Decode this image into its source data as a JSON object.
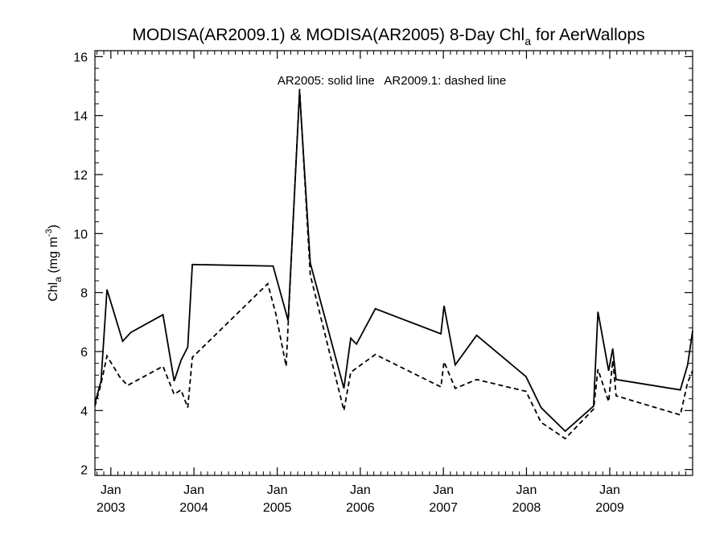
{
  "chart_data": {
    "type": "line",
    "title": "MODISA(AR2009.1) & MODISA(AR2005) 8-Day Chl",
    "title_subscript": "a",
    "title_suffix": " for AerWallops",
    "ylabel": "Chl",
    "ylabel_subscript": "a",
    "ylabel_unit": " (mg m",
    "ylabel_unit_exp": "-3",
    "ylabel_close": ")",
    "annotation": "AR2005: solid line   AR2009.1: dashed line",
    "xlim": [
      "2002-10-23",
      "2009-12-31"
    ],
    "ylim": [
      1.8,
      16.2
    ],
    "y_ticks": [
      2,
      4,
      6,
      8,
      10,
      12,
      14,
      16
    ],
    "y_tick_labels": [
      "2",
      "4",
      "6",
      "8",
      "10",
      "12",
      "14",
      "16"
    ],
    "x_ticks": [
      {
        "date": "2003-01-01",
        "month": "Jan",
        "year": "2003"
      },
      {
        "date": "2004-01-01",
        "month": "Jan",
        "year": "2004"
      },
      {
        "date": "2005-01-01",
        "month": "Jan",
        "year": "2005"
      },
      {
        "date": "2006-01-01",
        "month": "Jan",
        "year": "2006"
      },
      {
        "date": "2007-01-01",
        "month": "Jan",
        "year": "2007"
      },
      {
        "date": "2008-01-01",
        "month": "Jan",
        "year": "2008"
      },
      {
        "date": "2009-01-01",
        "month": "Jan",
        "year": "2009"
      }
    ],
    "grid": false,
    "series": [
      {
        "name": "AR2005",
        "line_style": "solid",
        "x": [
          "2002-10-23",
          "2002-11-19",
          "2002-12-15",
          "2003-02-22",
          "2003-03-30",
          "2003-08-18",
          "2003-10-06",
          "2003-11-05",
          "2003-12-05",
          "2003-12-25",
          "2004-12-14",
          "2005-02-18",
          "2005-04-09",
          "2005-05-26",
          "2005-10-21",
          "2005-11-20",
          "2005-12-15",
          "2006-03-08",
          "2006-12-21",
          "2007-01-04",
          "2007-02-22",
          "2007-05-27",
          "2007-12-30",
          "2008-03-05",
          "2008-06-19",
          "2008-10-22",
          "2008-11-10",
          "2008-12-27",
          "2009-01-14",
          "2009-01-29",
          "2009-11-07",
          "2009-12-09",
          "2009-12-31"
        ],
        "values": [
          4.25,
          5.0,
          8.1,
          6.35,
          6.65,
          7.25,
          5.0,
          5.7,
          6.15,
          8.95,
          8.9,
          7.05,
          14.8,
          9.0,
          4.75,
          6.45,
          6.25,
          7.45,
          6.6,
          7.55,
          5.55,
          6.55,
          5.15,
          4.1,
          3.3,
          4.15,
          7.35,
          5.35,
          6.1,
          5.05,
          4.7,
          5.55,
          6.7
        ]
      },
      {
        "name": "AR2009.1",
        "line_style": "dashed",
        "x": [
          "2002-10-23",
          "2002-11-19",
          "2002-12-15",
          "2003-02-08",
          "2003-03-15",
          "2003-08-18",
          "2003-10-06",
          "2003-11-05",
          "2003-12-05",
          "2003-12-25",
          "2004-11-20",
          "2004-12-25",
          "2005-02-09",
          "2005-04-09",
          "2005-05-26",
          "2005-10-21",
          "2005-11-20",
          "2006-03-08",
          "2006-12-21",
          "2007-01-04",
          "2007-02-22",
          "2007-05-27",
          "2007-12-30",
          "2008-03-05",
          "2008-06-19",
          "2008-10-22",
          "2008-11-10",
          "2008-12-27",
          "2009-01-14",
          "2009-01-29",
          "2009-11-07",
          "2009-12-09",
          "2009-12-31"
        ],
        "values": [
          4.15,
          4.9,
          5.85,
          5.15,
          4.85,
          5.5,
          4.55,
          4.7,
          4.1,
          5.8,
          8.3,
          7.3,
          5.5,
          14.9,
          8.6,
          4.0,
          5.3,
          5.9,
          4.8,
          5.65,
          4.75,
          5.05,
          4.65,
          3.6,
          3.05,
          4.05,
          5.4,
          4.3,
          5.7,
          4.5,
          3.85,
          4.95,
          5.35
        ]
      }
    ]
  }
}
